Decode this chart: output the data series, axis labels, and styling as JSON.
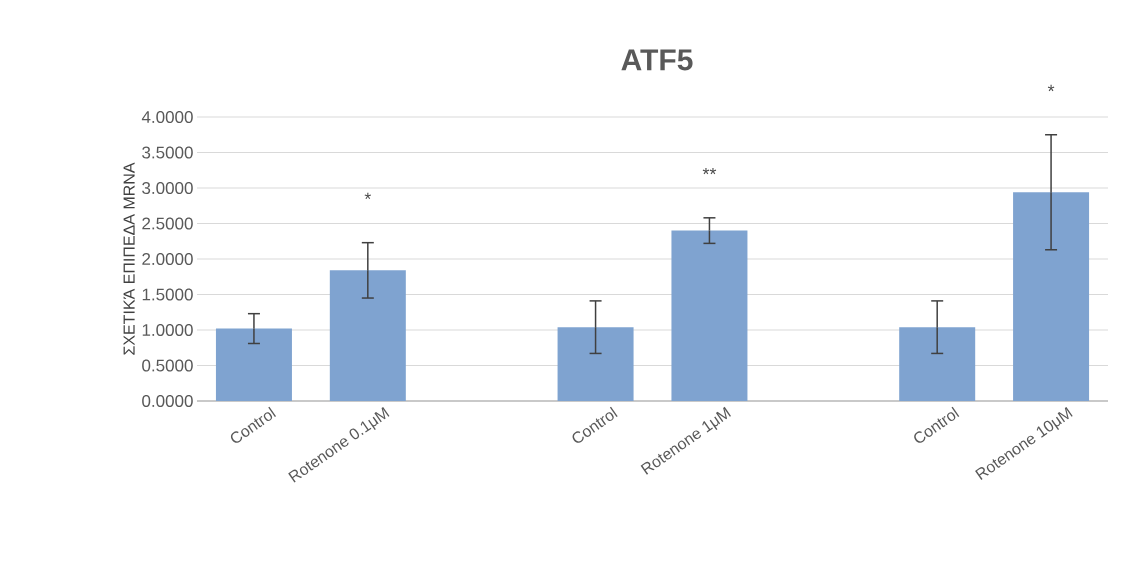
{
  "chart_data": {
    "type": "bar",
    "title": "ATF5",
    "ylabel": "ΣΧΕΤΙΚΆ ΕΠΙΠΕΔΑ MRNA",
    "categories": [
      "Control",
      "Rotenone 0.1μM",
      null,
      "Control",
      "Rotenone 1μM",
      null,
      "Control",
      "Rotenone 10μM"
    ],
    "values": [
      1.02,
      1.84,
      null,
      1.04,
      2.4,
      null,
      1.04,
      2.94
    ],
    "errors": [
      0.21,
      0.39,
      null,
      0.37,
      0.18,
      null,
      0.37,
      0.81
    ],
    "color": "#7fa3d0",
    "ylim": [
      0,
      4
    ],
    "yticks": [
      {
        "value": 0,
        "label": "0.0000"
      },
      {
        "value": 0.5,
        "label": "0.5000"
      },
      {
        "value": 1,
        "label": "1.0000"
      },
      {
        "value": 1.5,
        "label": "1.5000"
      },
      {
        "value": 2,
        "label": "2.0000"
      },
      {
        "value": 2.5,
        "label": "2.5000"
      },
      {
        "value": 3,
        "label": "3.0000"
      },
      {
        "value": 3.5,
        "label": "3.5000"
      },
      {
        "value": 4,
        "label": "4.0000"
      }
    ],
    "grid": "y",
    "annotations": [
      "*",
      "**",
      "*"
    ]
  }
}
